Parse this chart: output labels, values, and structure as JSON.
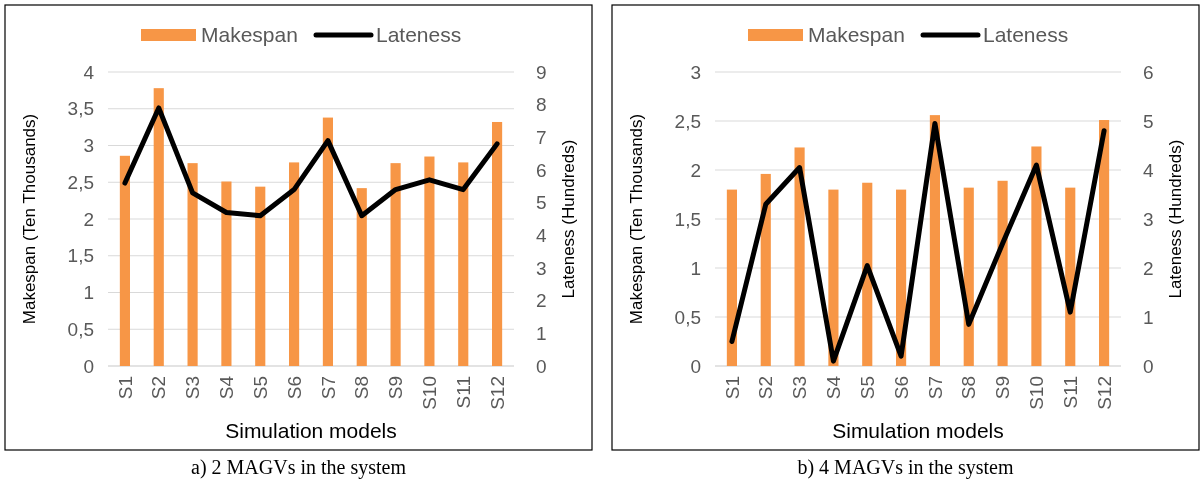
{
  "chart_data": [
    {
      "type": "bar",
      "xlabel": "Simulation models",
      "ylabel": "Makespan (Ten Thousands)",
      "y2label": "Lateness  (Hundreds)",
      "annotations": [
        "a) 2 MAGVs in the system"
      ],
      "categories": [
        "S1",
        "S2",
        "S3",
        "S4",
        "S5",
        "S6",
        "S7",
        "S8",
        "S9",
        "S10",
        "S11",
        "S12"
      ],
      "series": [
        {
          "name": "Makespan",
          "type": "bar",
          "color": "#f79646",
          "values": [
            2.86,
            3.78,
            2.76,
            2.51,
            2.44,
            2.77,
            3.38,
            2.42,
            2.76,
            2.85,
            2.77,
            3.32
          ]
        },
        {
          "name": "Lateness",
          "type": "line",
          "axis": "y2",
          "color": "#000000",
          "values": [
            5.6,
            7.9,
            5.3,
            4.7,
            4.6,
            5.4,
            6.9,
            4.6,
            5.4,
            5.7,
            5.4,
            6.8
          ]
        }
      ],
      "ylim": [
        0,
        4
      ],
      "yticks": [
        0,
        {
          "value": 0.5,
          "label": "0,5"
        },
        1,
        {
          "value": 1.5,
          "label": "1,5"
        },
        2,
        {
          "value": 2.5,
          "label": "2,5"
        },
        3,
        {
          "value": 3.5,
          "label": "3,5"
        },
        4
      ],
      "y2lim": [
        0,
        9
      ],
      "y2ticks": [
        0,
        1,
        2,
        3,
        4,
        5,
        6,
        7,
        8,
        9
      ],
      "grid": "y",
      "legend": "top",
      "line_style": "solid",
      "marker": "none"
    },
    {
      "type": "bar",
      "xlabel": "Simulation models",
      "ylabel": "Makespan (Ten Thousands)",
      "y2label": "Lateness  (Hundreds)",
      "annotations": [
        "b) 4 MAGVs in the system"
      ],
      "categories": [
        "S1",
        "S2",
        "S3",
        "S4",
        "S5",
        "S6",
        "S7",
        "S8",
        "S9",
        "S10",
        "S11",
        "S12"
      ],
      "series": [
        {
          "name": "Makespan",
          "type": "bar",
          "color": "#f79646",
          "values": [
            1.8,
            1.96,
            2.23,
            1.8,
            1.87,
            1.8,
            2.56,
            1.82,
            1.89,
            2.24,
            1.82,
            2.51
          ]
        },
        {
          "name": "Lateness",
          "type": "line",
          "axis": "y2",
          "color": "#000000",
          "values": [
            0.5,
            3.3,
            4.05,
            0.1,
            2.05,
            0.2,
            4.95,
            0.85,
            2.5,
            4.1,
            1.1,
            4.8
          ]
        }
      ],
      "ylim": [
        0,
        3
      ],
      "yticks": [
        0,
        {
          "value": 0.5,
          "label": "0,5"
        },
        1,
        {
          "value": 1.5,
          "label": "1,5"
        },
        2,
        {
          "value": 2.5,
          "label": "2,5"
        },
        3
      ],
      "y2lim": [
        0,
        6
      ],
      "y2ticks": [
        0,
        1,
        2,
        3,
        4,
        5,
        6
      ],
      "grid": "y",
      "legend": "top",
      "line_style": "solid",
      "marker": "none"
    }
  ]
}
